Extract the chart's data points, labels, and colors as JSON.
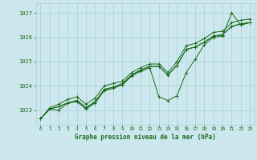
{
  "title": "Graphe pression niveau de la mer (hPa)",
  "bg_color": "#cce8ee",
  "grid_color": "#aacdd4",
  "line_color": "#1a6b1a",
  "text_color": "#1a6b1a",
  "xlim": [
    -0.5,
    23.5
  ],
  "ylim": [
    1022.4,
    1027.4
  ],
  "yticks": [
    1023,
    1024,
    1025,
    1026,
    1027
  ],
  "xticks": [
    0,
    1,
    2,
    3,
    4,
    5,
    6,
    7,
    8,
    9,
    10,
    11,
    12,
    13,
    14,
    15,
    16,
    17,
    18,
    19,
    20,
    21,
    22,
    23
  ],
  "series": [
    {
      "y": [
        1022.65,
        1023.05,
        1023.0,
        1023.3,
        1023.35,
        1023.05,
        1023.3,
        1023.8,
        1023.9,
        1024.05,
        1024.4,
        1024.6,
        1024.75,
        1023.55,
        1023.4,
        1023.6,
        1024.55,
        1025.1,
        1025.7,
        1026.0,
        1026.05,
        1027.0,
        1026.5,
        1026.6
      ],
      "marker": "+"
    },
    {
      "y": [
        1022.65,
        1023.05,
        1023.15,
        1023.3,
        1023.4,
        1023.1,
        1023.35,
        1023.85,
        1023.95,
        1024.05,
        1024.45,
        1024.65,
        1024.8,
        1024.8,
        1024.45,
        1024.85,
        1025.5,
        1025.6,
        1025.8,
        1026.05,
        1026.1,
        1026.45,
        1026.55,
        1026.6
      ],
      "marker": "+"
    },
    {
      "y": [
        1022.65,
        1023.05,
        1023.15,
        1023.3,
        1023.4,
        1023.1,
        1023.35,
        1023.85,
        1023.95,
        1024.1,
        1024.45,
        1024.65,
        1024.8,
        1024.8,
        1024.45,
        1024.85,
        1025.5,
        1025.6,
        1025.8,
        1026.05,
        1026.1,
        1026.45,
        1026.55,
        1026.6
      ],
      "marker": "+"
    },
    {
      "y": [
        1022.65,
        1023.1,
        1023.25,
        1023.45,
        1023.55,
        1023.25,
        1023.5,
        1024.0,
        1024.1,
        1024.2,
        1024.55,
        1024.75,
        1024.9,
        1024.9,
        1024.55,
        1025.0,
        1025.65,
        1025.75,
        1025.95,
        1026.2,
        1026.25,
        1026.6,
        1026.7,
        1026.75
      ],
      "marker": "+"
    }
  ]
}
